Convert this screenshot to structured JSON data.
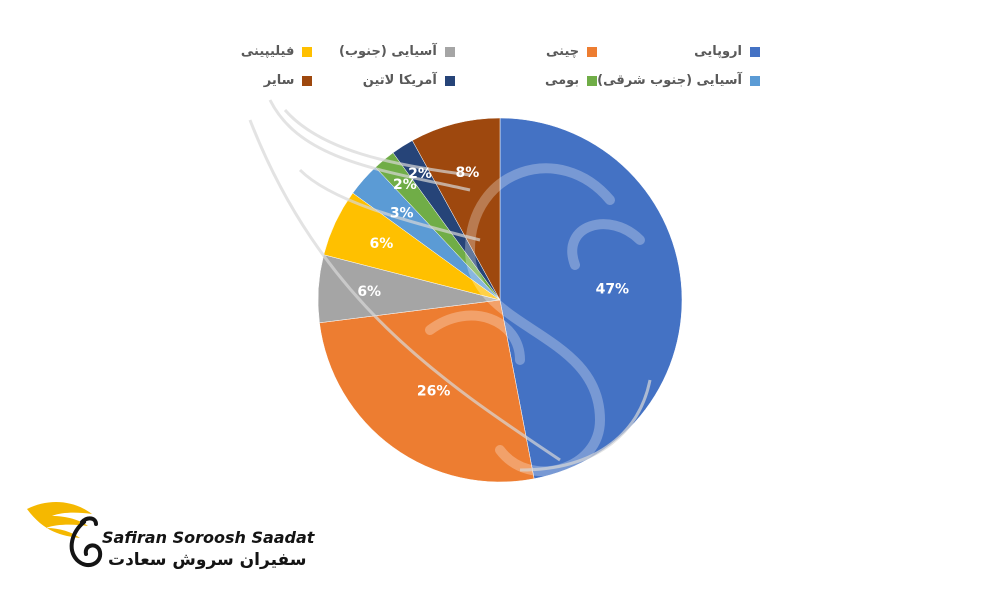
{
  "chart_data": {
    "type": "pie",
    "title": "",
    "legend_position": "top",
    "start_angle_deg": 0,
    "direction": "clockwise",
    "labels": [
      "اروپایی",
      "چینی",
      "آسیایی (جنوب)",
      "فیلیپینی",
      "آسیایی (جنوب شرقی)",
      "بومی",
      "آمریکا لاتین",
      "سایر"
    ],
    "values": [
      47,
      26,
      6,
      6,
      3,
      2,
      2,
      8
    ],
    "value_labels": [
      "47%",
      "26%",
      "6%",
      "6%",
      "3%",
      "2%",
      "2%",
      "8%"
    ],
    "colors": [
      "#4472C4",
      "#ED7D31",
      "#A5A5A5",
      "#FFC000",
      "#5B9BD5",
      "#70AD47",
      "#264478",
      "#9E480E"
    ],
    "legend_order": [
      0,
      1,
      2,
      3,
      4,
      5,
      6,
      7
    ]
  },
  "brand": {
    "name_en": "Safiran Soroosh Saadat",
    "name_fa": "سفیران سروش سعادت",
    "logo_icon": "swan-wing-logo-icon",
    "accent_color": "#F5B800"
  }
}
